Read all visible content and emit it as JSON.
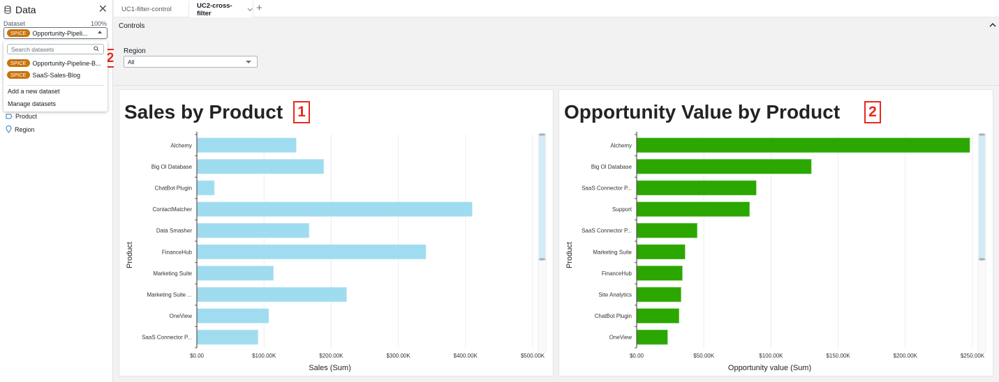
{
  "sidebar": {
    "title": "Data",
    "dataset_label": "Dataset",
    "dataset_percent": "100%",
    "selected_dataset": {
      "badge": "SPICE",
      "name": "Opportunity-Pipeli..."
    },
    "search_placeholder": "Search datasets",
    "dataset_options": [
      {
        "badge": "SPICE",
        "name": "Opportunity-Pipeline-B..."
      },
      {
        "badge": "SPICE",
        "name": "SaaS-Sales-Blog"
      }
    ],
    "actions": [
      "Add a new dataset",
      "Manage datasets"
    ],
    "fields": [
      {
        "icon": "dimension-icon",
        "label": "Product"
      },
      {
        "icon": "geo-icon",
        "label": "Region"
      }
    ],
    "callouts": [
      "2",
      "1"
    ]
  },
  "tabs": [
    {
      "label": "UC1-filter-control",
      "active": false
    },
    {
      "label": "UC2-cross-filter",
      "active": true
    }
  ],
  "controls": {
    "title": "Controls",
    "region_label": "Region",
    "region_value": "All"
  },
  "colors": {
    "sales_bar": "#a0dcf0",
    "opportunity_bar": "#2ca600",
    "callout": "#e8291c",
    "spice_badge": "#c8730c"
  },
  "chart_data": [
    {
      "type": "bar",
      "orientation": "horizontal",
      "title": "Sales by Product",
      "callout": "1",
      "xlabel": "Sales (Sum)",
      "ylabel": "Product",
      "categories": [
        "Alchemy",
        "Big Ol Database",
        "ChatBot Plugin",
        "ContactMatcher",
        "Data Smasher",
        "FinanceHub",
        "Marketing Suite",
        "Marketing Suite ...",
        "OneView",
        "SaaS Connector P..."
      ],
      "values": [
        148000,
        189000,
        26000,
        410000,
        167000,
        341000,
        114000,
        223000,
        107000,
        91000
      ],
      "xlim": [
        0,
        500000
      ],
      "xticks": [
        "$0.00",
        "$100.00K",
        "$200.00K",
        "$300.00K",
        "$400.00K",
        "$500.00K"
      ],
      "grid": true,
      "scrollbar_visible_fraction": 0.57
    },
    {
      "type": "bar",
      "orientation": "horizontal",
      "title": "Opportunity Value by Product",
      "callout": "2",
      "xlabel": "Opportunity value (Sum)",
      "ylabel": "Product",
      "categories": [
        "Alchemy",
        "Big Ol Database",
        "SaaS Connector P...",
        "Support",
        "SaaS Connector P...",
        "Marketing Suite",
        "FinanceHub",
        "Site Analytics",
        "ChatBot Plugin",
        "OneView"
      ],
      "values": [
        248000,
        130000,
        89000,
        84000,
        45000,
        36000,
        34000,
        33000,
        31500,
        23000
      ],
      "xlim": [
        0,
        250000
      ],
      "xticks": [
        "$0.00",
        "$50.00K",
        "$100.00K",
        "$150.00K",
        "$200.00K",
        "$250.00K"
      ],
      "grid": true,
      "scrollbar_visible_fraction": 0.57
    }
  ]
}
